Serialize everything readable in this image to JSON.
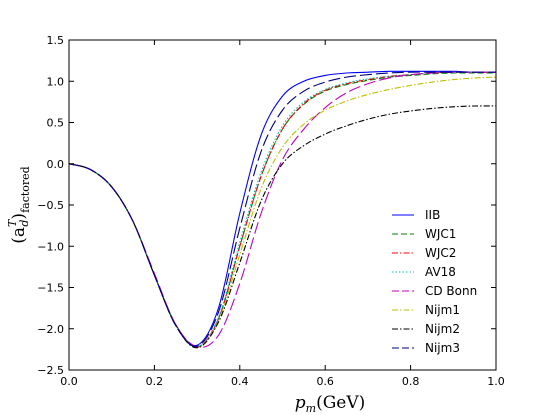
{
  "chart_data": {
    "type": "line",
    "xlabel": {
      "main": "p",
      "sub": "m",
      "unit": "(GeV)"
    },
    "ylabel": {
      "open": "(a",
      "sub": "d",
      "sup": "T",
      "close": ")",
      "subtext": "factored"
    },
    "xlim": [
      0.0,
      1.0
    ],
    "ylim": [
      -2.5,
      1.5
    ],
    "xticks": [
      "0.0",
      "0.2",
      "0.4",
      "0.6",
      "0.8",
      "1.0"
    ],
    "yticks": [
      "1.5",
      "1.0",
      "0.5",
      "0.0",
      "−0.5",
      "−1.0",
      "−1.5",
      "−2.0",
      "−2.5"
    ],
    "x": [
      0.0,
      0.05,
      0.1,
      0.15,
      0.2,
      0.25,
      0.3,
      0.35,
      0.4,
      0.45,
      0.5,
      0.55,
      0.6,
      0.65,
      0.7,
      0.75,
      0.8,
      0.85,
      0.9,
      0.95,
      1.0
    ],
    "legend_position": "lower-right",
    "series": [
      {
        "name": "IIB",
        "color": "#0000ff",
        "dash": "solid",
        "values": [
          0.0,
          -0.07,
          -0.28,
          -0.7,
          -1.35,
          -1.95,
          -2.2,
          -1.75,
          -0.6,
          0.35,
          0.82,
          1.0,
          1.07,
          1.1,
          1.11,
          1.12,
          1.12,
          1.12,
          1.12,
          1.11,
          1.11
        ]
      },
      {
        "name": "WJC1",
        "color": "#008000",
        "dash": "dashed",
        "values": [
          0.0,
          -0.07,
          -0.28,
          -0.7,
          -1.35,
          -1.96,
          -2.22,
          -1.88,
          -1.0,
          -0.15,
          0.42,
          0.72,
          0.88,
          0.96,
          1.01,
          1.05,
          1.07,
          1.09,
          1.1,
          1.1,
          1.1
        ]
      },
      {
        "name": "WJC2",
        "color": "#ff0000",
        "dash": "dashdot",
        "values": [
          0.0,
          -0.07,
          -0.28,
          -0.7,
          -1.35,
          -1.96,
          -2.22,
          -1.88,
          -1.0,
          -0.15,
          0.42,
          0.73,
          0.89,
          0.97,
          1.02,
          1.06,
          1.08,
          1.1,
          1.11,
          1.11,
          1.11
        ]
      },
      {
        "name": "AV18",
        "color": "#00bfbf",
        "dash": "dotted",
        "values": [
          0.0,
          -0.07,
          -0.28,
          -0.7,
          -1.35,
          -1.96,
          -2.22,
          -1.86,
          -0.95,
          -0.1,
          0.46,
          0.75,
          0.9,
          0.98,
          1.03,
          1.06,
          1.08,
          1.1,
          1.11,
          1.11,
          1.11
        ]
      },
      {
        "name": "CD Bonn",
        "color": "#bf00bf",
        "dash": "longdash",
        "values": [
          0.0,
          -0.07,
          -0.28,
          -0.7,
          -1.33,
          -1.95,
          -2.22,
          -2.08,
          -1.45,
          -0.6,
          0.05,
          0.42,
          0.68,
          0.86,
          0.97,
          1.04,
          1.08,
          1.1,
          1.11,
          1.11,
          1.11
        ]
      },
      {
        "name": "Nijm1",
        "color": "#bfbf00",
        "dash": "dashdot",
        "values": [
          0.0,
          -0.07,
          -0.28,
          -0.7,
          -1.35,
          -1.96,
          -2.23,
          -1.9,
          -1.1,
          -0.3,
          0.2,
          0.48,
          0.65,
          0.76,
          0.84,
          0.9,
          0.95,
          0.99,
          1.02,
          1.04,
          1.05
        ]
      },
      {
        "name": "Nijm2",
        "color": "#000000",
        "dash": "dashdot",
        "values": [
          0.0,
          -0.07,
          -0.28,
          -0.7,
          -1.35,
          -1.96,
          -2.23,
          -1.92,
          -1.2,
          -0.45,
          0.0,
          0.22,
          0.36,
          0.46,
          0.54,
          0.6,
          0.64,
          0.67,
          0.69,
          0.7,
          0.7
        ]
      },
      {
        "name": "Nijm3",
        "color": "#000080",
        "dash": "longdash",
        "values": [
          0.0,
          -0.07,
          -0.28,
          -0.7,
          -1.35,
          -1.96,
          -2.21,
          -1.8,
          -0.78,
          0.15,
          0.65,
          0.88,
          0.99,
          1.05,
          1.08,
          1.1,
          1.11,
          1.11,
          1.11,
          1.11,
          1.11
        ]
      }
    ]
  }
}
